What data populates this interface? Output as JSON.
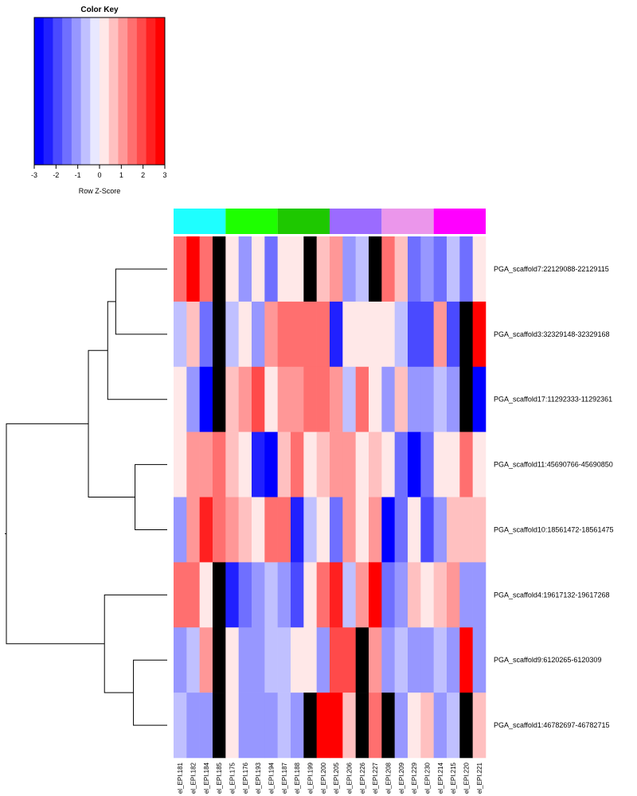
{
  "chart_data": {
    "type": "heatmap",
    "color_key": {
      "title": "Color Key",
      "xlabel": "Row Z-Score",
      "range": [
        -3,
        3
      ],
      "ticks": [
        -3,
        -2,
        -1,
        0,
        1,
        2,
        3
      ],
      "tick_labels": [
        "-3",
        "-2",
        "-1",
        "0",
        "1",
        "2",
        "3"
      ],
      "colors": [
        "#0000ff",
        "#2020ff",
        "#4a4aff",
        "#6f6fff",
        "#9797ff",
        "#c0c0ff",
        "#e8e8ff",
        "#ffe8e8",
        "#ffc0c0",
        "#ff9797",
        "#ff6f6f",
        "#ff4a4a",
        "#ff2020",
        "#ff0000"
      ]
    },
    "na_color": "#000000",
    "columns": [
      "el_EPI.181",
      "el_EPI.182",
      "el_EPI.184",
      "el_EPI.185",
      "el_EPI.175",
      "el_EPI.176",
      "el_EPI.193",
      "el_EPI.194",
      "el_EPI.187",
      "el_EPI.188",
      "el_EPI.199",
      "el_EPI.200",
      "el_EPI.205",
      "el_EPI.206",
      "el_EPI.226",
      "el_EPI.227",
      "el_EPI.208",
      "el_EPI.209",
      "el_EPI.229",
      "el_EPI.230",
      "el_EPI.214",
      "el_EPI.215",
      "el_EPI.220",
      "el_EPI.221"
    ],
    "column_groups": [
      {
        "color": "#1effff",
        "span": 4
      },
      {
        "color": "#1eff00",
        "span": 4
      },
      {
        "color": "#1ec800",
        "span": 4
      },
      {
        "color": "#9b6bff",
        "span": 4
      },
      {
        "color": "#eb96eb",
        "span": 4
      },
      {
        "color": "#ff00ff",
        "span": 4
      }
    ],
    "rows": [
      "PGA_scaffold7:22129088-22129115",
      "PGA_scaffold3:32329148-32329168",
      "PGA_scaffold17:11292333-11292361",
      "PGA_scaffold11:45690766-45690850",
      "PGA_scaffold10:18561472-18561475",
      "PGA_scaffold4:19617132-19617268",
      "PGA_scaffold9:6120265-6120309",
      "PGA_scaffold1:46782697-46782715"
    ],
    "values": [
      [
        1.7,
        2.9,
        1.7,
        null,
        0,
        -0.9,
        0,
        -1.7,
        0,
        0,
        null,
        0.6,
        0.9,
        -0.9,
        -0.6,
        null,
        1.7,
        0.6,
        -1.7,
        -1.0,
        -1.7,
        -0.6,
        -1.7,
        0
      ],
      [
        -0.6,
        0.5,
        -1.7,
        null,
        -0.6,
        0,
        -1.0,
        1.1,
        1.4,
        1.4,
        1.4,
        1.4,
        -2.3,
        0,
        0,
        0,
        0,
        -0.6,
        -2.0,
        -2.0,
        1.1,
        -2.0,
        null,
        3.0
      ],
      [
        0,
        -1.0,
        -2.8,
        null,
        0.6,
        1.1,
        2.0,
        0,
        1.1,
        1.1,
        1.7,
        1.7,
        1.1,
        -0.6,
        1.7,
        0,
        -1.0,
        0.6,
        -1.1,
        -1.1,
        -0.6,
        -1.1,
        null,
        -3.0
      ],
      [
        0,
        1.1,
        1.1,
        1.7,
        0.5,
        0,
        -2.3,
        -2.9,
        0.5,
        1.7,
        0,
        0.5,
        1.1,
        1.1,
        0,
        0.5,
        0,
        -1.7,
        -2.6,
        -1.4,
        0,
        0,
        1.7,
        0
      ],
      [
        -1.0,
        1.1,
        2.3,
        1.7,
        1.1,
        0.5,
        0,
        1.4,
        1.7,
        -2.3,
        -0.6,
        0,
        -1.7,
        1.1,
        0,
        1.1,
        -2.6,
        -1.7,
        0,
        -2.0,
        -1.0,
        0.5,
        0.5,
        0.5
      ],
      [
        1.7,
        1.7,
        0,
        null,
        -2.3,
        -1.7,
        -1.0,
        -0.6,
        -1.1,
        -2.0,
        0,
        1.7,
        2.3,
        -0.6,
        1.1,
        2.6,
        -1.4,
        -0.9,
        0.5,
        0,
        0.5,
        1.1,
        -1.1,
        -1.1
      ],
      [
        -1.0,
        -0.6,
        1.1,
        null,
        0,
        -1.1,
        -1.1,
        -0.6,
        -0.6,
        0,
        0,
        -1.1,
        2.0,
        2.0,
        null,
        1.1,
        -1.0,
        -0.6,
        -1.1,
        -1.1,
        -0.6,
        -1.1,
        2.9,
        -1.0
      ],
      [
        -0.6,
        -1.1,
        -1.1,
        null,
        0,
        -1.1,
        -1.1,
        -1.1,
        -0.6,
        -1.1,
        null,
        2.6,
        3.0,
        0.5,
        null,
        1.7,
        null,
        -1.1,
        0,
        0.5,
        -1.1,
        -0.6,
        null,
        0.5
      ]
    ],
    "row_dendrogram": {
      "order": [
        "PGA_scaffold7:22129088-22129115",
        "PGA_scaffold3:32329148-32329168",
        "PGA_scaffold17:11292333-11292361",
        "PGA_scaffold11:45690766-45690850",
        "PGA_scaffold10:18561472-18561475",
        "PGA_scaffold4:19617132-19617268",
        "PGA_scaffold9:6120265-6120309",
        "PGA_scaffold1:46782697-46782715"
      ],
      "merges": [
        {
          "left": 0,
          "right": 1,
          "height": 0.32
        },
        {
          "left": 6,
          "right": 7,
          "height": 0.21
        },
        {
          "left": 3,
          "right": 4,
          "height": 0.2
        },
        {
          "left": "m0",
          "right": 2,
          "height": 0.37
        },
        {
          "left": 5,
          "right": "m1",
          "height": 0.39
        },
        {
          "left": "m3",
          "right": "m2",
          "height": 0.49
        },
        {
          "left": "m5",
          "right": "m4",
          "height": 1.0
        }
      ]
    }
  }
}
